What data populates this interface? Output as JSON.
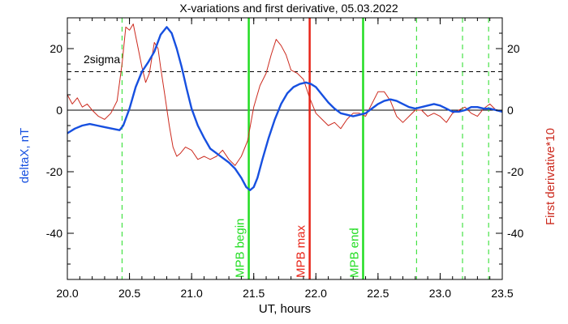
{
  "chart_data": {
    "type": "line",
    "title": "X-variations and first derivative, 05.03.2022",
    "xlabel": "UT, hours",
    "ylabel_left": "deltaX, nT",
    "ylabel_right": "First derivative*10",
    "xlim": [
      20.0,
      23.5
    ],
    "ylim": [
      -55,
      30
    ],
    "x_ticks": [
      "20.0",
      "20.5",
      "21.0",
      "21.5",
      "22.0",
      "22.5",
      "23.0",
      "23.5"
    ],
    "y_ticks": [
      "-40",
      "-20",
      "0",
      "20"
    ],
    "annotation_2sigma": "2sigma",
    "sigma_level": 12.5,
    "colors": {
      "deltaX": "#1750e0",
      "derivative": "#cc2a1e",
      "green": "#22dd22",
      "red_marker": "#e82418",
      "text": "#000000"
    },
    "series": [
      {
        "name": "deltaX, nT",
        "x": [
          20.0,
          20.06,
          20.12,
          20.18,
          20.24,
          20.3,
          20.36,
          20.42,
          20.45,
          20.5,
          20.55,
          20.6,
          20.65,
          20.7,
          20.75,
          20.8,
          20.84,
          20.88,
          20.92,
          20.96,
          21.0,
          21.05,
          21.1,
          21.15,
          21.2,
          21.25,
          21.3,
          21.35,
          21.4,
          21.44,
          21.47,
          21.5,
          21.53,
          21.57,
          21.62,
          21.67,
          21.72,
          21.77,
          21.82,
          21.87,
          21.92,
          21.96,
          22.0,
          22.05,
          22.1,
          22.15,
          22.2,
          22.25,
          22.3,
          22.35,
          22.4,
          22.45,
          22.5,
          22.55,
          22.6,
          22.65,
          22.7,
          22.75,
          22.8,
          22.85,
          22.9,
          22.95,
          23.0,
          23.05,
          23.1,
          23.15,
          23.2,
          23.25,
          23.3,
          23.35,
          23.4,
          23.45,
          23.5
        ],
        "values": [
          -7.5,
          -6.0,
          -5.0,
          -4.5,
          -5.0,
          -5.5,
          -6.0,
          -6.5,
          -5.0,
          0.5,
          7.5,
          12.5,
          15.5,
          19.0,
          24.5,
          27.0,
          25.0,
          20.0,
          14.0,
          7.0,
          0.5,
          -5.0,
          -9.0,
          -12.5,
          -14.0,
          -15.5,
          -17.0,
          -19.0,
          -22.0,
          -25.0,
          -26.0,
          -25.0,
          -22.0,
          -16.0,
          -9.0,
          -3.0,
          2.0,
          5.5,
          7.5,
          8.5,
          9.0,
          8.5,
          7.5,
          5.0,
          2.5,
          0.5,
          -1.0,
          -1.5,
          -2.0,
          -1.5,
          -1.0,
          0.5,
          2.0,
          3.0,
          3.5,
          3.0,
          2.0,
          1.0,
          0.5,
          1.0,
          1.5,
          2.0,
          1.5,
          0.5,
          -0.5,
          -0.5,
          0.0,
          1.0,
          1.0,
          0.5,
          0.5,
          0.0,
          -0.5
        ]
      },
      {
        "name": "First derivative*10",
        "x": [
          20.0,
          20.04,
          20.08,
          20.12,
          20.16,
          20.2,
          20.25,
          20.3,
          20.35,
          20.4,
          20.44,
          20.47,
          20.5,
          20.53,
          20.56,
          20.6,
          20.63,
          20.66,
          20.7,
          20.73,
          20.75,
          20.78,
          20.82,
          20.85,
          20.88,
          20.91,
          20.95,
          21.0,
          21.05,
          21.1,
          21.15,
          21.2,
          21.25,
          21.3,
          21.35,
          21.4,
          21.45,
          21.5,
          21.55,
          21.6,
          21.64,
          21.68,
          21.72,
          21.76,
          21.8,
          21.85,
          21.9,
          21.95,
          22.0,
          22.05,
          22.1,
          22.15,
          22.2,
          22.25,
          22.3,
          22.35,
          22.4,
          22.45,
          22.5,
          22.55,
          22.6,
          22.65,
          22.7,
          22.75,
          22.8,
          22.85,
          22.9,
          22.95,
          23.0,
          23.05,
          23.1,
          23.15,
          23.2,
          23.25,
          23.3,
          23.35,
          23.4,
          23.45,
          23.5
        ],
        "values": [
          5.0,
          2.0,
          4.0,
          1.0,
          2.0,
          0.0,
          -2.0,
          -3.0,
          -1.0,
          3.0,
          15.0,
          27.0,
          26.0,
          28.0,
          22.0,
          14.0,
          9.0,
          12.0,
          22.0,
          20.0,
          14.0,
          6.0,
          -5.0,
          -12.0,
          -15.0,
          -14.0,
          -12.0,
          -13.0,
          -16.0,
          -15.0,
          -16.0,
          -15.0,
          -13.0,
          -16.0,
          -18.0,
          -15.0,
          -10.0,
          1.0,
          8.0,
          12.0,
          18.0,
          23.0,
          21.0,
          18.0,
          13.0,
          12.0,
          10.0,
          4.0,
          -1.0,
          -3.0,
          -5.0,
          -4.0,
          -6.0,
          -3.0,
          -1.0,
          -1.0,
          -2.0,
          2.0,
          6.0,
          6.0,
          3.0,
          -2.0,
          -4.0,
          -2.0,
          0.0,
          0.0,
          -2.0,
          -1.0,
          -2.0,
          -4.0,
          -1.0,
          0.0,
          1.0,
          -1.0,
          -2.0,
          0.5,
          2.0,
          0.0,
          0.0
        ]
      }
    ],
    "markers": [
      {
        "x": 21.46,
        "color": "green",
        "label": "MPB begin",
        "style": "solid"
      },
      {
        "x": 21.95,
        "color": "red",
        "label": "MPB max",
        "style": "solid"
      },
      {
        "x": 22.38,
        "color": "green",
        "label": "MPB end",
        "style": "solid"
      },
      {
        "x": 20.44,
        "color": "green",
        "label": "",
        "style": "dashed"
      },
      {
        "x": 22.81,
        "color": "green",
        "label": "",
        "style": "dashed"
      },
      {
        "x": 23.18,
        "color": "green",
        "label": "",
        "style": "dashed"
      },
      {
        "x": 23.39,
        "color": "green",
        "label": "",
        "style": "dashed"
      }
    ]
  }
}
